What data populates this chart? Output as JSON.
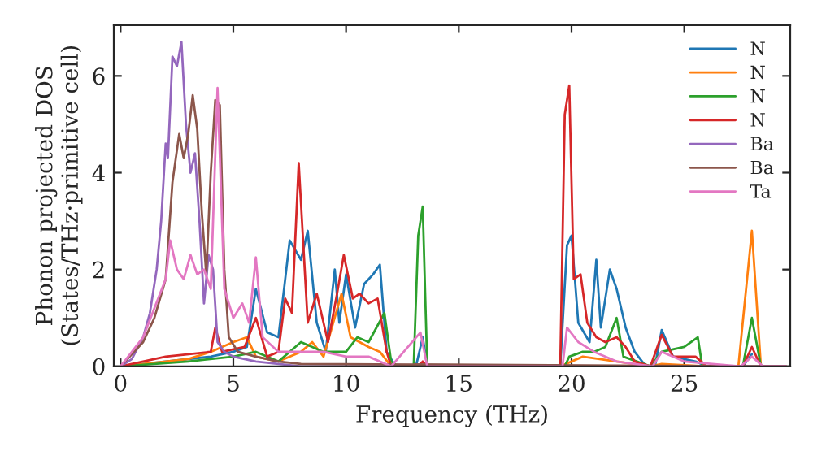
{
  "chart_data": {
    "type": "line",
    "xlabel": "Frequency (THz)",
    "ylabel": "Phonon projected DOS\n(States/THz·primitive cell)",
    "xlim": [
      -0.3,
      29.7
    ],
    "ylim": [
      0,
      7.05
    ],
    "xticks": [
      0,
      5,
      10,
      15,
      20,
      25
    ],
    "yticks": [
      0,
      2,
      4,
      6
    ],
    "legend": "top right",
    "grid": false,
    "series": [
      {
        "name": "N",
        "color": "#1f77b4",
        "x": [
          0,
          2,
          4,
          5,
          5.6,
          6.0,
          6.5,
          7,
          7.5,
          8.0,
          8.3,
          8.7,
          9.1,
          9.5,
          9.7,
          10.0,
          10.4,
          10.8,
          11.2,
          11.5,
          11.8,
          12.2,
          13.1,
          13.4,
          13.6,
          19.5,
          19.8,
          20.0,
          20.3,
          20.8,
          21.1,
          21.3,
          21.7,
          22.0,
          22.4,
          22.8,
          23.3,
          23.7,
          24.0,
          24.5,
          25.5,
          26,
          27.6,
          28
        ],
        "values": [
          0,
          0.1,
          0.2,
          0.3,
          0.4,
          1.6,
          0.7,
          0.6,
          2.6,
          2.2,
          2.8,
          0.9,
          0.3,
          2.0,
          0.9,
          1.9,
          0.8,
          1.7,
          1.9,
          2.1,
          0.3,
          0,
          0,
          0.6,
          0,
          0,
          2.5,
          2.7,
          0.9,
          0.5,
          2.2,
          0.8,
          2.0,
          1.6,
          0.8,
          0.3,
          0,
          0,
          0.75,
          0.2,
          0.1,
          0,
          0,
          0.25
        ]
      },
      {
        "name": "N",
        "color": "#ff7f0e",
        "x": [
          0,
          3,
          4,
          5,
          5.6,
          6.0,
          7,
          8,
          8.5,
          9,
          9.8,
          10.2,
          11,
          11.5,
          12,
          19.5,
          20.5,
          22,
          23.5,
          24,
          26,
          27.4,
          28,
          28.4,
          29.5
        ],
        "values": [
          0,
          0.15,
          0.3,
          0.5,
          0.6,
          0.2,
          0.1,
          0.3,
          0.5,
          0.2,
          1.5,
          0.6,
          0.4,
          0.3,
          0,
          0,
          0.2,
          0.1,
          0,
          0.05,
          0,
          0,
          2.8,
          0,
          0
        ]
      },
      {
        "name": "N",
        "color": "#2ca02c",
        "x": [
          0,
          3,
          5,
          6,
          7,
          8,
          9,
          10,
          10.5,
          11.0,
          11.7,
          12.0,
          12.3,
          13.0,
          13.2,
          13.4,
          13.6,
          19.7,
          19.9,
          20.5,
          21,
          21.5,
          22.0,
          22.3,
          23.5,
          24,
          25,
          25.6,
          25.8,
          27.6,
          28,
          28.4,
          29.5
        ],
        "values": [
          0,
          0.1,
          0.2,
          0.3,
          0.1,
          0.5,
          0.3,
          0.3,
          0.6,
          0.5,
          1.1,
          0.1,
          0,
          0,
          2.7,
          3.3,
          0,
          0,
          0.2,
          0.3,
          0.3,
          0.4,
          1.0,
          0.2,
          0,
          0.3,
          0.4,
          0.6,
          0,
          0,
          1.0,
          0,
          0
        ]
      },
      {
        "name": "N",
        "color": "#d62728",
        "x": [
          0,
          2,
          4,
          4.2,
          4.5,
          5.5,
          6,
          6.5,
          7,
          7.3,
          7.6,
          7.9,
          8.3,
          8.7,
          9.2,
          9.6,
          9.9,
          10.3,
          10.6,
          11,
          11.4,
          11.8,
          12,
          13.2,
          13.4,
          13.6,
          19.5,
          19.7,
          19.9,
          20.1,
          20.4,
          20.7,
          21.1,
          21.5,
          22.0,
          22.4,
          22.8,
          23.5,
          24,
          24.5,
          25.5,
          26,
          27.6,
          28,
          28.4,
          29.5
        ],
        "values": [
          0,
          0.2,
          0.3,
          0.8,
          0.3,
          0.4,
          1.0,
          0.2,
          0.3,
          1.4,
          1.1,
          4.2,
          0.9,
          1.5,
          0.5,
          1.5,
          2.3,
          1.4,
          1.5,
          1.3,
          1.4,
          0.3,
          0,
          0,
          0.1,
          0,
          0,
          5.2,
          5.8,
          1.8,
          1.9,
          0.9,
          0.6,
          0.5,
          0.6,
          0.4,
          0.1,
          0,
          0.65,
          0.2,
          0.2,
          0,
          0,
          0.4,
          0,
          0
        ]
      },
      {
        "name": "Ba",
        "color": "#9467bd",
        "x": [
          0,
          0.5,
          1,
          1.3,
          1.6,
          1.8,
          2.0,
          2.1,
          2.3,
          2.5,
          2.7,
          2.9,
          3.1,
          3.3,
          3.5,
          3.7,
          3.9,
          4.1,
          4.3,
          4.6,
          5,
          6,
          7,
          8,
          29.5
        ],
        "values": [
          0,
          0.15,
          0.6,
          1.1,
          2.0,
          3.0,
          4.6,
          4.3,
          6.4,
          6.2,
          6.7,
          5.0,
          4.0,
          4.4,
          3.0,
          1.3,
          2.3,
          2.0,
          0.5,
          0.3,
          0.2,
          0.1,
          0.05,
          0,
          0
        ]
      },
      {
        "name": "Ba",
        "color": "#8c564b",
        "x": [
          0,
          1,
          1.5,
          2.0,
          2.3,
          2.6,
          2.8,
          3.0,
          3.2,
          3.4,
          3.6,
          3.8,
          4.0,
          4.2,
          4.4,
          4.6,
          4.8,
          5.2,
          6,
          7,
          8,
          29.5
        ],
        "values": [
          0,
          0.5,
          1.0,
          1.8,
          3.8,
          4.8,
          4.3,
          4.8,
          5.6,
          4.9,
          3.2,
          1.9,
          4.0,
          5.5,
          5.4,
          2.0,
          0.6,
          0.3,
          0.2,
          0.1,
          0.05,
          0
        ]
      },
      {
        "name": "Ta",
        "color": "#e377c2",
        "x": [
          0,
          1,
          1.5,
          2.0,
          2.2,
          2.5,
          2.8,
          3.1,
          3.4,
          3.7,
          4.0,
          4.3,
          4.6,
          5.0,
          5.4,
          5.7,
          6.0,
          6.3,
          7,
          8,
          9,
          10,
          11,
          12,
          13.3,
          13.6,
          19.6,
          19.8,
          20.3,
          21,
          22,
          23.6,
          24,
          25,
          27.5,
          28,
          28.5,
          29.5
        ],
        "values": [
          0,
          0.6,
          1.2,
          1.8,
          2.6,
          2.0,
          1.8,
          2.3,
          1.9,
          2.0,
          1.6,
          5.75,
          1.6,
          1.0,
          1.3,
          0.9,
          2.25,
          0.6,
          0.3,
          0.3,
          0.3,
          0.2,
          0.2,
          0,
          0.7,
          0,
          0,
          0.8,
          0.5,
          0.3,
          0.1,
          0,
          0.3,
          0.1,
          0,
          0.2,
          0,
          0
        ]
      }
    ]
  }
}
